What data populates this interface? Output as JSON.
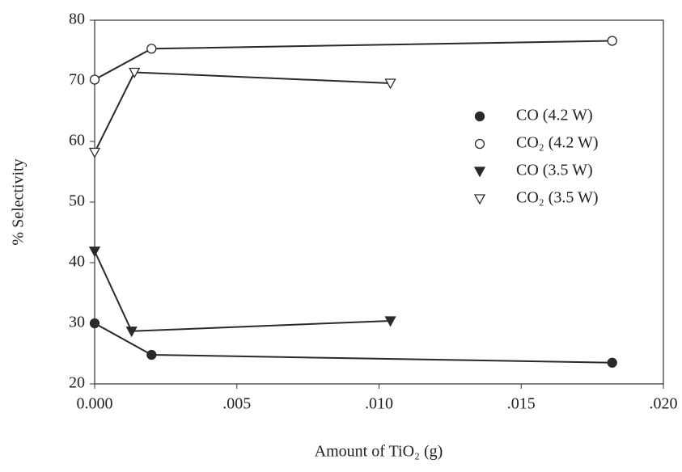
{
  "chart_data": {
    "type": "line",
    "x_label": "Amount of TiO₂ (g)",
    "y_label": "% Selectivity",
    "xlim": [
      0,
      0.02
    ],
    "xticks": [
      {
        "value": 0,
        "label": "0.000"
      },
      {
        "value": 0.005,
        "label": ".005"
      },
      {
        "value": 0.01,
        "label": ".010"
      },
      {
        "value": 0.015,
        "label": ".015"
      },
      {
        "value": 0.02,
        "label": ".020"
      }
    ],
    "ylim": [
      20,
      80
    ],
    "yticks": [
      20,
      30,
      40,
      50,
      60,
      70,
      80
    ],
    "grid": false,
    "legend": "center-right",
    "series": [
      {
        "name": "CO (4.2 W)",
        "color": "#2a2a2a",
        "marker": "circle",
        "filled": true,
        "x": [
          0,
          0.002,
          0.0182
        ],
        "values": [
          30.0,
          24.8,
          23.5
        ]
      },
      {
        "name": "CO₂ (4.2 W)",
        "color": "#2a2a2a",
        "marker": "circle",
        "filled": false,
        "x": [
          0,
          0.002,
          0.0182
        ],
        "values": [
          70.2,
          75.3,
          76.6
        ]
      },
      {
        "name": "CO (3.5 W)",
        "color": "#2a2a2a",
        "marker": "triangle-down",
        "filled": true,
        "x": [
          0,
          0.0013,
          0.0104
        ],
        "values": [
          41.9,
          28.7,
          30.4
        ]
      },
      {
        "name": "CO₂ (3.5 W)",
        "color": "#2a2a2a",
        "marker": "triangle-down",
        "filled": false,
        "x": [
          0,
          0.0014,
          0.0104
        ],
        "values": [
          58.2,
          71.4,
          69.6
        ]
      }
    ]
  }
}
